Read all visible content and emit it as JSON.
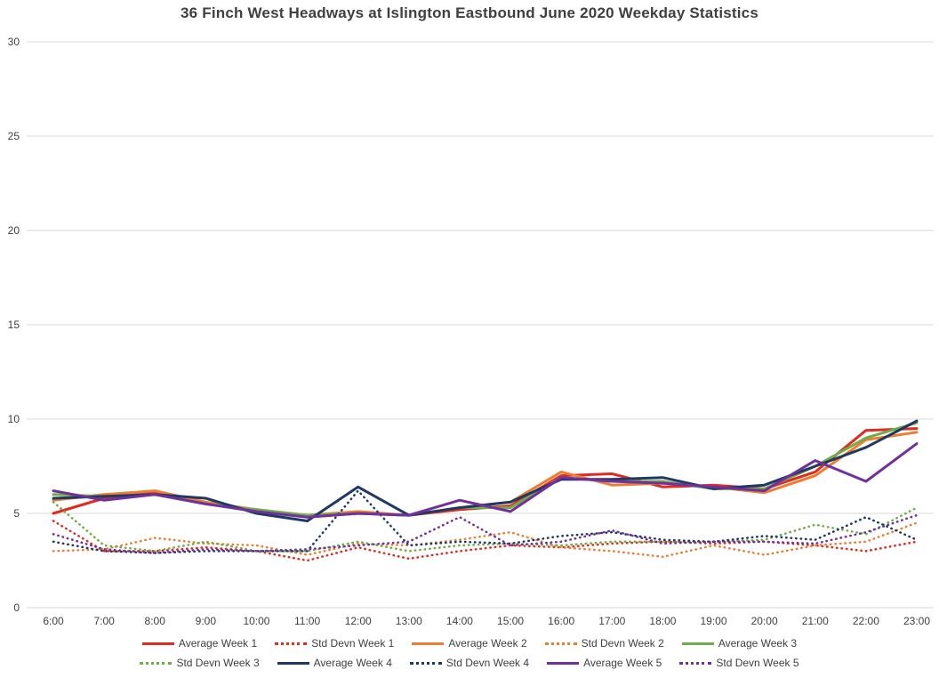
{
  "colors": {
    "background": "#FFFFFF",
    "title_text": "#404040",
    "axis_text": "#404040",
    "gridline": "#D9D9D9"
  },
  "chart_data": {
    "type": "line",
    "title": "36 Finch West Headways at Islington Eastbound June 2020 Weekday Statistics",
    "xlabel": "",
    "ylabel": "",
    "ylim": [
      0,
      30
    ],
    "yticks": [
      0,
      5,
      10,
      15,
      20,
      25,
      30
    ],
    "grid": "horizontal",
    "legend_position": "bottom",
    "categories": [
      "6:00",
      "7:00",
      "8:00",
      "9:00",
      "10:00",
      "11:00",
      "12:00",
      "13:00",
      "14:00",
      "15:00",
      "16:00",
      "17:00",
      "18:00",
      "19:00",
      "20:00",
      "21:00",
      "22:00",
      "23:00"
    ],
    "series": [
      {
        "name": "Average Week 1",
        "color": "#E02B20",
        "style": "solid",
        "values": [
          5.0,
          5.8,
          6.1,
          5.5,
          5.2,
          4.8,
          5.0,
          4.9,
          5.2,
          5.4,
          7.0,
          7.1,
          6.4,
          6.5,
          6.3,
          7.2,
          9.4,
          9.5
        ]
      },
      {
        "name": "Std Devn Week 1",
        "color": "#E02B20",
        "style": "dotted",
        "values": [
          4.6,
          3.0,
          3.0,
          3.2,
          3.0,
          2.5,
          3.2,
          2.6,
          3.0,
          3.3,
          3.2,
          3.4,
          3.5,
          3.4,
          3.5,
          3.3,
          3.0,
          3.5
        ]
      },
      {
        "name": "Average Week 2",
        "color": "#ED7D31",
        "style": "solid",
        "values": [
          5.7,
          6.0,
          6.2,
          5.6,
          5.2,
          4.9,
          5.1,
          4.9,
          5.3,
          5.6,
          7.2,
          6.5,
          6.6,
          6.4,
          6.1,
          7.0,
          8.9,
          9.3
        ]
      },
      {
        "name": "Std Devn Week 2",
        "color": "#ED7D31",
        "style": "dotted",
        "values": [
          3.0,
          3.1,
          3.7,
          3.4,
          3.3,
          2.8,
          3.4,
          3.3,
          3.6,
          4.0,
          3.2,
          3.0,
          2.7,
          3.3,
          2.8,
          3.3,
          3.5,
          4.5
        ]
      },
      {
        "name": "Average Week 3",
        "color": "#70AD47",
        "style": "solid",
        "values": [
          6.0,
          5.9,
          6.0,
          5.5,
          5.2,
          4.9,
          5.0,
          4.9,
          5.3,
          5.3,
          6.9,
          6.7,
          6.7,
          6.3,
          6.3,
          7.5,
          9.0,
          9.8
        ]
      },
      {
        "name": "Std Devn Week 3",
        "color": "#70AD47",
        "style": "dotted",
        "values": [
          5.6,
          3.3,
          3.0,
          3.5,
          3.0,
          3.0,
          3.5,
          3.0,
          3.3,
          3.4,
          3.3,
          3.5,
          3.5,
          3.5,
          3.6,
          4.4,
          3.9,
          5.3
        ]
      },
      {
        "name": "Average Week 4",
        "color": "#1F3864",
        "style": "solid",
        "values": [
          5.8,
          5.9,
          6.0,
          5.8,
          5.0,
          4.6,
          6.4,
          4.9,
          5.3,
          5.6,
          6.8,
          6.8,
          6.9,
          6.3,
          6.5,
          7.5,
          8.5,
          9.9
        ]
      },
      {
        "name": "Std Devn Week 4",
        "color": "#1F3864",
        "style": "dotted",
        "values": [
          3.5,
          3.0,
          2.9,
          3.0,
          3.0,
          3.0,
          6.2,
          3.3,
          3.5,
          3.4,
          3.8,
          4.0,
          3.6,
          3.5,
          3.8,
          3.6,
          4.8,
          3.6
        ]
      },
      {
        "name": "Average Week 5",
        "color": "#7030A0",
        "style": "solid",
        "values": [
          6.2,
          5.7,
          6.0,
          5.5,
          5.1,
          4.8,
          5.0,
          4.9,
          5.7,
          5.1,
          6.9,
          6.7,
          6.6,
          6.4,
          6.2,
          7.8,
          6.7,
          8.7
        ]
      },
      {
        "name": "Std Devn Week 5",
        "color": "#7030A0",
        "style": "dotted",
        "values": [
          3.9,
          3.1,
          2.9,
          3.1,
          3.0,
          3.1,
          3.3,
          3.5,
          4.8,
          3.3,
          3.5,
          4.1,
          3.4,
          3.5,
          3.5,
          3.4,
          4.0,
          4.9
        ]
      }
    ]
  }
}
